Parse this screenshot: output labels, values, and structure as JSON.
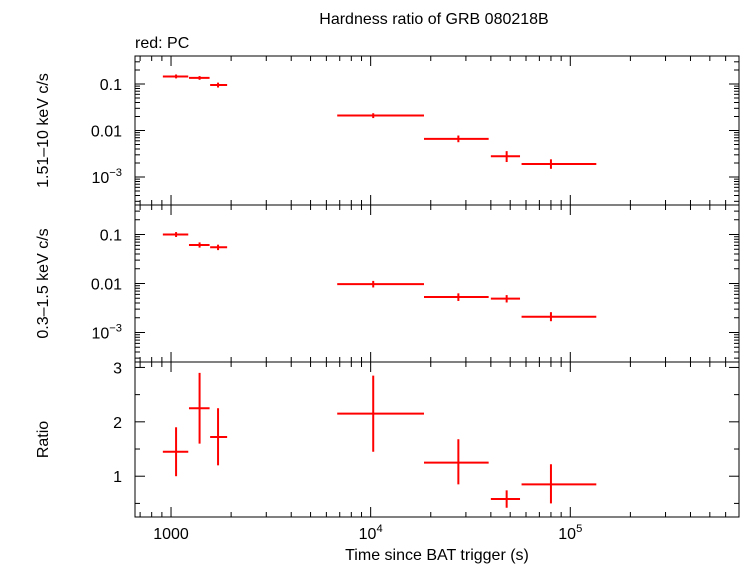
{
  "chart_data": {
    "type": "scatter",
    "title": "Hardness ratio of GRB 080218B",
    "subtitle": "red: PC",
    "xlabel": "Time since BAT trigger (s)",
    "x_scale": "log",
    "xlim": [
      660,
      700000
    ],
    "x_ticks": [
      {
        "value": 1000,
        "label": "1000"
      },
      {
        "value": 10000,
        "label": "10^4"
      },
      {
        "value": 100000,
        "label": "10^5"
      }
    ],
    "series_color": "#ff0000",
    "panels": [
      {
        "name": "hard",
        "ylabel": "1.51–10 keV c/s",
        "y_scale": "log",
        "ylim": [
          0.00025,
          0.4
        ],
        "y_ticks": [
          {
            "value": 0.1,
            "label": "0.1"
          },
          {
            "value": 0.01,
            "label": "0.01"
          },
          {
            "value": 0.001,
            "label": "10^-3"
          }
        ],
        "points": [
          {
            "x": 1060,
            "xlo": 910,
            "xhi": 1220,
            "y": 0.145,
            "ylo": 0.132,
            "yhi": 0.16
          },
          {
            "x": 1390,
            "xlo": 1230,
            "xhi": 1560,
            "y": 0.135,
            "ylo": 0.123,
            "yhi": 0.148
          },
          {
            "x": 1720,
            "xlo": 1570,
            "xhi": 1910,
            "y": 0.095,
            "ylo": 0.084,
            "yhi": 0.107
          },
          {
            "x": 10300,
            "xlo": 6800,
            "xhi": 18500,
            "y": 0.021,
            "ylo": 0.0185,
            "yhi": 0.0235
          },
          {
            "x": 27500,
            "xlo": 18500,
            "xhi": 39000,
            "y": 0.0066,
            "ylo": 0.0056,
            "yhi": 0.0078
          },
          {
            "x": 48000,
            "xlo": 40000,
            "xhi": 56000,
            "y": 0.0028,
            "ylo": 0.0021,
            "yhi": 0.0036
          },
          {
            "x": 80000,
            "xlo": 57000,
            "xhi": 135000,
            "y": 0.0019,
            "ylo": 0.0015,
            "yhi": 0.0024
          }
        ]
      },
      {
        "name": "soft",
        "ylabel": "0.3–1.5 keV c/s",
        "y_scale": "log",
        "ylim": [
          0.00025,
          0.4
        ],
        "y_ticks": [
          {
            "value": 0.1,
            "label": "0.1"
          },
          {
            "value": 0.01,
            "label": "0.01"
          },
          {
            "value": 0.001,
            "label": "10^-3"
          }
        ],
        "points": [
          {
            "x": 1060,
            "xlo": 910,
            "xhi": 1220,
            "y": 0.1,
            "ylo": 0.089,
            "yhi": 0.112
          },
          {
            "x": 1390,
            "xlo": 1230,
            "xhi": 1560,
            "y": 0.061,
            "ylo": 0.054,
            "yhi": 0.069
          },
          {
            "x": 1720,
            "xlo": 1570,
            "xhi": 1910,
            "y": 0.055,
            "ylo": 0.048,
            "yhi": 0.062
          },
          {
            "x": 10300,
            "xlo": 6800,
            "xhi": 18500,
            "y": 0.0097,
            "ylo": 0.0083,
            "yhi": 0.0113
          },
          {
            "x": 27500,
            "xlo": 18500,
            "xhi": 39000,
            "y": 0.0053,
            "ylo": 0.0044,
            "yhi": 0.0063
          },
          {
            "x": 48000,
            "xlo": 40000,
            "xhi": 56000,
            "y": 0.0049,
            "ylo": 0.0041,
            "yhi": 0.0058
          },
          {
            "x": 80000,
            "xlo": 57000,
            "xhi": 135000,
            "y": 0.0021,
            "ylo": 0.0017,
            "yhi": 0.0026
          }
        ]
      },
      {
        "name": "ratio",
        "ylabel": "Ratio",
        "y_scale": "linear",
        "ylim": [
          0.25,
          3.1
        ],
        "y_ticks": [
          {
            "value": 1,
            "label": "1"
          },
          {
            "value": 2,
            "label": "2"
          },
          {
            "value": 3,
            "label": "3"
          }
        ],
        "points": [
          {
            "x": 1060,
            "xlo": 910,
            "xhi": 1220,
            "y": 1.45,
            "ylo": 1.0,
            "yhi": 1.9
          },
          {
            "x": 1390,
            "xlo": 1230,
            "xhi": 1560,
            "y": 2.25,
            "ylo": 1.6,
            "yhi": 2.9
          },
          {
            "x": 1720,
            "xlo": 1570,
            "xhi": 1910,
            "y": 1.72,
            "ylo": 1.2,
            "yhi": 2.25
          },
          {
            "x": 10300,
            "xlo": 6800,
            "xhi": 18500,
            "y": 2.15,
            "ylo": 1.45,
            "yhi": 2.85
          },
          {
            "x": 27500,
            "xlo": 18500,
            "xhi": 39000,
            "y": 1.25,
            "ylo": 0.85,
            "yhi": 1.68
          },
          {
            "x": 48000,
            "xlo": 40000,
            "xhi": 56000,
            "y": 0.58,
            "ylo": 0.42,
            "yhi": 0.74
          },
          {
            "x": 80000,
            "xlo": 57000,
            "xhi": 135000,
            "y": 0.85,
            "ylo": 0.5,
            "yhi": 1.22
          }
        ]
      }
    ]
  }
}
